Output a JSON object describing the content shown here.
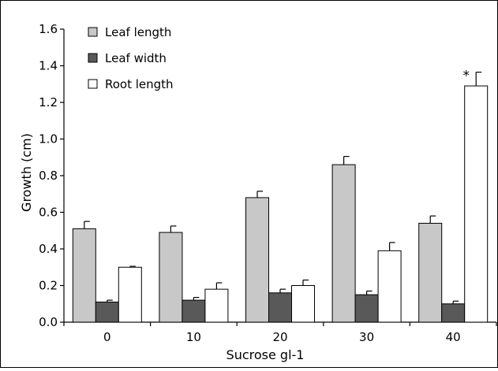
{
  "chart_data": {
    "type": "bar",
    "title": "",
    "xlabel": "Sucrose gl-1",
    "ylabel": "Growth (cm)",
    "categories": [
      "0",
      "10",
      "20",
      "30",
      "40"
    ],
    "ylim": [
      0,
      1.6
    ],
    "yticks": [
      "0.0",
      "0.2",
      "0.4",
      "0.6",
      "0.8",
      "1.0",
      "1.2",
      "1.4",
      "1.6"
    ],
    "legend_position": "top-left",
    "grid": false,
    "series": [
      {
        "name": "Leaf length",
        "color": "#c8c8c8",
        "values": [
          0.51,
          0.49,
          0.68,
          0.86,
          0.54
        ],
        "errors": [
          0.04,
          0.035,
          0.035,
          0.045,
          0.04
        ]
      },
      {
        "name": "Leaf width",
        "color": "#595959",
        "values": [
          0.11,
          0.12,
          0.16,
          0.15,
          0.1
        ],
        "errors": [
          0.01,
          0.015,
          0.02,
          0.02,
          0.015
        ]
      },
      {
        "name": "Root length",
        "color": "#ffffff",
        "values": [
          0.3,
          0.18,
          0.2,
          0.39,
          1.29
        ],
        "errors": [
          0.005,
          0.035,
          0.03,
          0.045,
          0.075
        ]
      }
    ],
    "annotations": [
      {
        "text": "*",
        "category": "40",
        "series": "Root length"
      }
    ]
  }
}
